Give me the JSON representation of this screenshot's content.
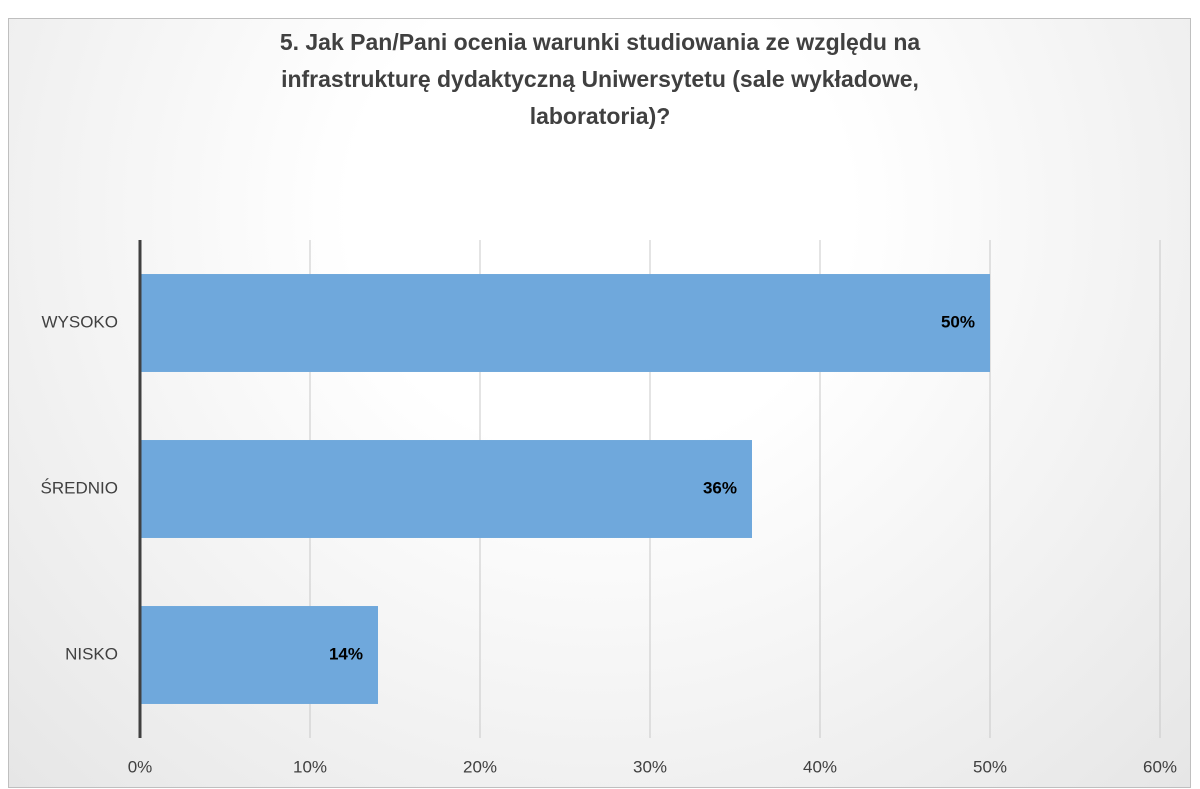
{
  "chart_data": {
    "type": "barh",
    "title": "5. Jak Pan/Pani ocenia warunki studiowania ze względu na\ninfrastrukturę dydaktyczną Uniwersytetu (sale wykładowe,\nlaboratoria)?",
    "categories": [
      "WYSOKO",
      "ŚREDNIO",
      "NISKO"
    ],
    "values": [
      50,
      36,
      14
    ],
    "value_labels": [
      "50%",
      "36%",
      "14%"
    ],
    "color": "#6fa8dc",
    "xlim": [
      0,
      60
    ],
    "xticks": [
      {
        "value": 0,
        "label": "0%"
      },
      {
        "value": 10,
        "label": "10%"
      },
      {
        "value": 20,
        "label": "20%"
      },
      {
        "value": 30,
        "label": "30%"
      },
      {
        "value": 40,
        "label": "40%"
      },
      {
        "value": 50,
        "label": "50%"
      },
      {
        "value": 60,
        "label": "60%"
      }
    ],
    "grid": true
  }
}
